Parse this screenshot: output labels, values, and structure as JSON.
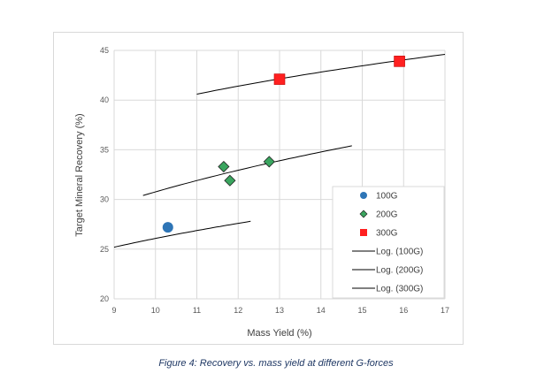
{
  "chart_data": {
    "type": "scatter",
    "xlabel": "Mass Yield (%)",
    "ylabel": "Target Mineral Recovery (%)",
    "xlim": [
      9,
      17
    ],
    "ylim": [
      20,
      45
    ],
    "xticks": [
      "9",
      "10",
      "11",
      "12",
      "13",
      "14",
      "15",
      "16",
      "17"
    ],
    "yticks": [
      "20",
      "25",
      "30",
      "35",
      "40",
      "45"
    ],
    "grid": true,
    "legend_position": "bottom-right",
    "series": [
      {
        "name": "100G",
        "marker": "circle",
        "color": "#2e75b6",
        "points": [
          {
            "x": 10.3,
            "y": 27.2
          }
        ]
      },
      {
        "name": "200G",
        "marker": "diamond",
        "color": "#3aa55f",
        "points": [
          {
            "x": 11.65,
            "y": 33.3
          },
          {
            "x": 11.8,
            "y": 31.9
          },
          {
            "x": 12.75,
            "y": 33.8
          }
        ]
      },
      {
        "name": "300G",
        "marker": "square",
        "color": "#ff2020",
        "points": [
          {
            "x": 13.0,
            "y": 42.1
          },
          {
            "x": 15.9,
            "y": 43.9
          }
        ]
      }
    ],
    "trendlines": [
      {
        "name": "Log. (100G)",
        "color": "#000000",
        "x_start": 9.0,
        "x_end": 12.3,
        "y_start": 25.2,
        "y_end": 27.8
      },
      {
        "name": "Log. (200G)",
        "color": "#000000",
        "x_start": 9.7,
        "x_end": 14.75,
        "y_start": 30.4,
        "y_end": 35.4
      },
      {
        "name": "Log. (300G)",
        "color": "#000000",
        "x_start": 11.0,
        "x_end": 17.0,
        "y_start": 40.6,
        "y_end": 44.6
      }
    ]
  },
  "caption": "Figure 4: Recovery vs. mass yield at different G-forces"
}
